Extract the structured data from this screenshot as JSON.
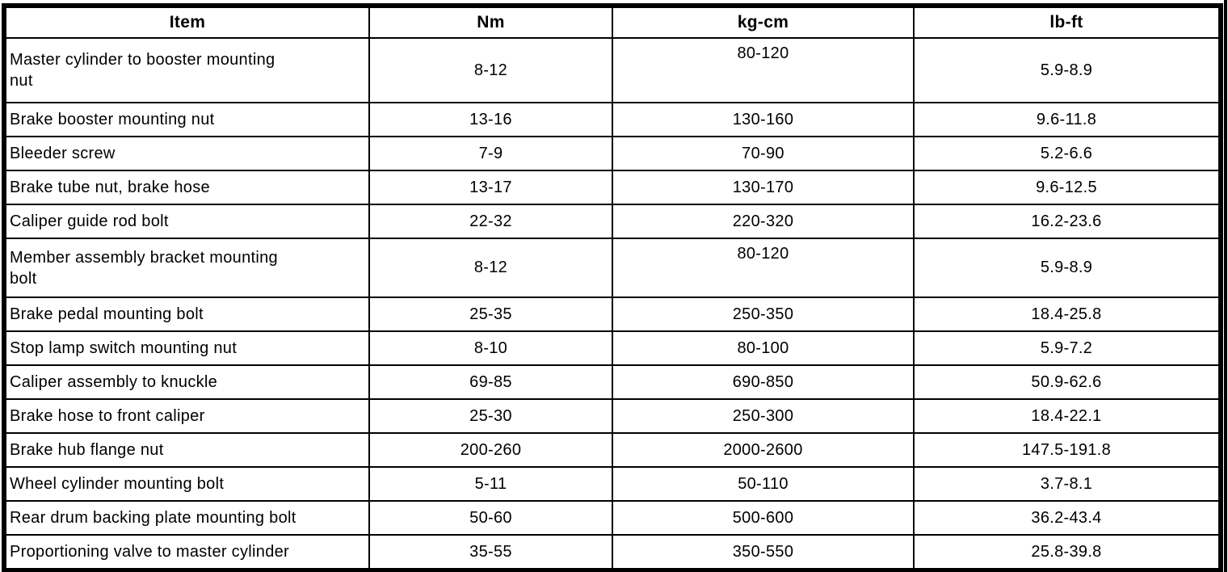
{
  "table": {
    "headers": [
      "Item",
      "Nm",
      "kg-cm",
      "lb-ft"
    ],
    "rows": [
      {
        "item": "Master cylinder to booster mounting\nnut",
        "nm": "8-12",
        "kg_cm": "80-120",
        "lb_ft": "5.9-8.9"
      },
      {
        "item": "Brake booster mounting nut",
        "nm": "13-16",
        "kg_cm": "130-160",
        "lb_ft": "9.6-11.8"
      },
      {
        "item": "Bleeder screw",
        "nm": "7-9",
        "kg_cm": "70-90",
        "lb_ft": "5.2-6.6"
      },
      {
        "item": "Brake tube nut, brake hose",
        "nm": "13-17",
        "kg_cm": "130-170",
        "lb_ft": "9.6-12.5"
      },
      {
        "item": "Caliper guide rod bolt",
        "nm": "22-32",
        "kg_cm": "220-320",
        "lb_ft": "16.2-23.6"
      },
      {
        "item": "Member assembly bracket mounting\nbolt",
        "nm": "8-12",
        "kg_cm": "80-120",
        "lb_ft": "5.9-8.9"
      },
      {
        "item": "Brake pedal mounting bolt",
        "nm": "25-35",
        "kg_cm": "250-350",
        "lb_ft": "18.4-25.8"
      },
      {
        "item": "Stop lamp switch mounting nut",
        "nm": "8-10",
        "kg_cm": "80-100",
        "lb_ft": "5.9-7.2"
      },
      {
        "item": "Caliper assembly to knuckle",
        "nm": "69-85",
        "kg_cm": "690-850",
        "lb_ft": "50.9-62.6"
      },
      {
        "item": "Brake hose to front caliper",
        "nm": "25-30",
        "kg_cm": "250-300",
        "lb_ft": "18.4-22.1"
      },
      {
        "item": "Brake hub flange nut",
        "nm": "200-260",
        "kg_cm": "2000-2600",
        "lb_ft": "147.5-191.8"
      },
      {
        "item": "Wheel cylinder mounting bolt",
        "nm": "5-11",
        "kg_cm": "50-110",
        "lb_ft": "3.7-8.1"
      },
      {
        "item": "Rear drum backing plate mounting bolt",
        "nm": "50-60",
        "kg_cm": "500-600",
        "lb_ft": "36.2-43.4"
      },
      {
        "item": "Proportioning valve to master cylinder",
        "nm": "35-55",
        "kg_cm": "350-550",
        "lb_ft": "25.8-39.8"
      }
    ]
  }
}
